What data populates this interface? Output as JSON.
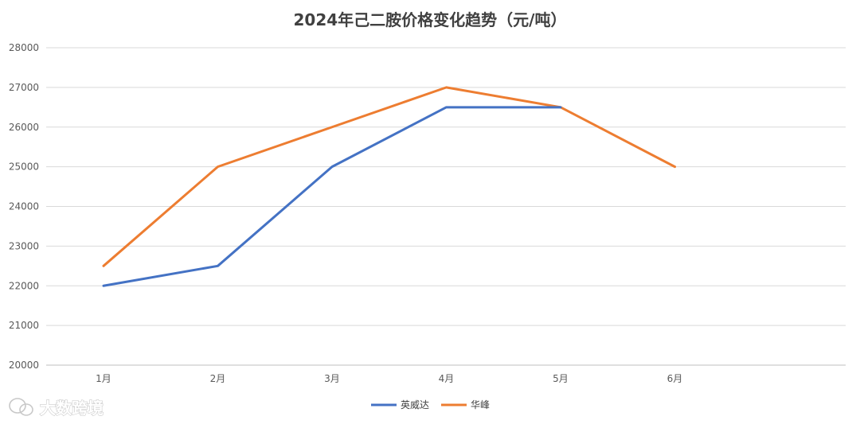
{
  "chart_data": {
    "type": "line",
    "title": "2024年己二胺价格变化趋势（元/吨）",
    "categories": [
      "1月",
      "2月",
      "3月",
      "4月",
      "5月",
      "6月"
    ],
    "series": [
      {
        "name": "英威达",
        "color": "#4472C4",
        "values": [
          22000,
          22500,
          25000,
          26500,
          26500,
          null
        ]
      },
      {
        "name": "华峰",
        "color": "#ED7D31",
        "values": [
          22500,
          25000,
          26000,
          27000,
          26500,
          25000
        ]
      }
    ],
    "ylim": [
      20000,
      28000
    ],
    "yticks": [
      20000,
      21000,
      22000,
      23000,
      24000,
      25000,
      26000,
      27000,
      28000
    ],
    "grid": true,
    "legend": "bottom-center"
  },
  "watermark": {
    "text": "大数跨境",
    "icon": "wechat-logo-icon"
  }
}
